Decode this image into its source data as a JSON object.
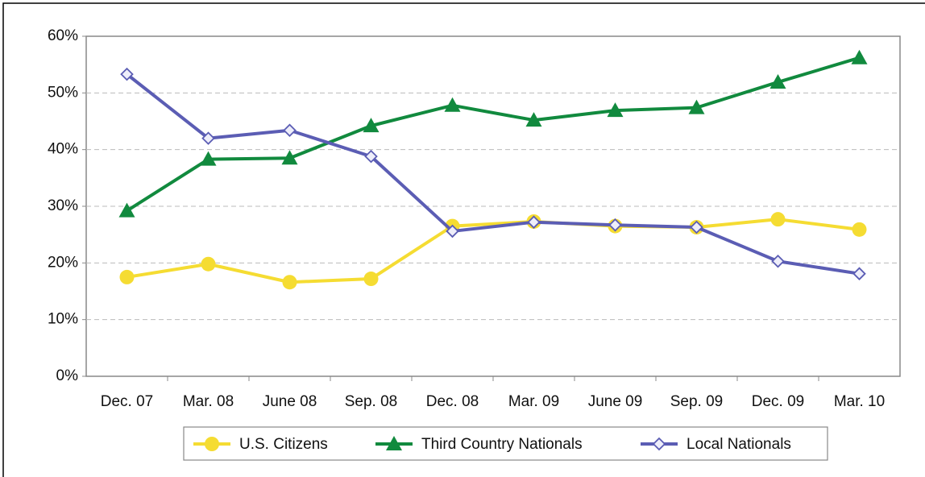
{
  "chart_data": {
    "type": "line",
    "categories": [
      "Dec. 07",
      "Mar. 08",
      "June 08",
      "Sep. 08",
      "Dec. 08",
      "Mar. 09",
      "June 09",
      "Sep. 09",
      "Dec. 09",
      "Mar. 10"
    ],
    "series": [
      {
        "name": "U.S. Citizens",
        "color": "#f5dc32",
        "marker": "circle",
        "values": [
          17.5,
          19.8,
          16.6,
          17.2,
          26.5,
          27.3,
          26.5,
          26.3,
          27.7,
          25.9
        ]
      },
      {
        "name": "Third Country Nationals",
        "color": "#118a3e",
        "marker": "triangle",
        "values": [
          29.2,
          38.3,
          38.5,
          44.2,
          47.8,
          45.2,
          46.9,
          47.4,
          51.9,
          56.2
        ]
      },
      {
        "name": "Local Nationals",
        "color": "#5b5db4",
        "marker": "diamond",
        "values": [
          53.3,
          42.0,
          43.4,
          38.8,
          25.6,
          27.2,
          26.7,
          26.3,
          20.3,
          18.1
        ]
      }
    ],
    "ylim": [
      0,
      60
    ],
    "yticks": [
      {
        "value": 0,
        "label": "0%"
      },
      {
        "value": 10,
        "label": "10%"
      },
      {
        "value": 20,
        "label": "20%"
      },
      {
        "value": 30,
        "label": "30%"
      },
      {
        "value": 40,
        "label": "40%"
      },
      {
        "value": 50,
        "label": "50%"
      },
      {
        "value": 60,
        "label": "60%"
      }
    ],
    "grid": true,
    "legend": "bottom"
  }
}
